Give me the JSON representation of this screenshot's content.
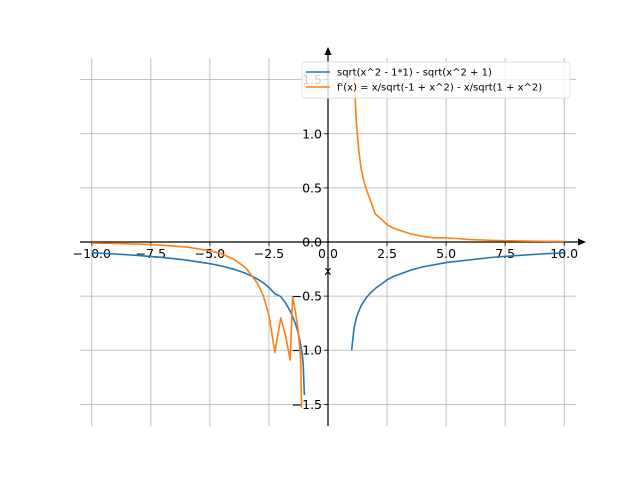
{
  "chart_data": {
    "type": "line",
    "title": "",
    "xlabel": "x",
    "ylabel": "",
    "xlim": [
      -10.5,
      10.5
    ],
    "ylim": [
      -1.7,
      1.7
    ],
    "grid": true,
    "legend_position": "top-right",
    "x_ticks": [
      -10.0,
      -7.5,
      -5.0,
      -2.5,
      0.0,
      2.5,
      5.0,
      7.5,
      10.0
    ],
    "x_tick_labels": [
      "−10.0",
      "−7.5",
      "−5.0",
      "−2.5",
      "0.0",
      "2.5",
      "5.0",
      "7.5",
      "10.0"
    ],
    "y_ticks": [
      -1.5,
      -1.0,
      -0.5,
      0.0,
      0.5,
      1.0,
      1.5
    ],
    "y_tick_labels": [
      "−1.5",
      "−1.0",
      "−0.5",
      "0.0",
      "0.5",
      "1.0",
      "1.5"
    ],
    "series": [
      {
        "name": "sqrt(x^2 - 1*1) - sqrt(x^2 + 1)",
        "color": "#1f77b4",
        "segments": [
          {
            "x": [
              -10.0,
              -9.0,
              -8.0,
              -7.0,
              -6.0,
              -5.0,
              -4.5,
              -4.0,
              -3.5,
              -3.0,
              -2.75,
              -2.5,
              -2.25,
              -2.0,
              -1.8,
              -1.6,
              -1.4,
              -1.3,
              -1.2,
              -1.1,
              -1.05,
              -1.0
            ],
            "y": [
              -0.1,
              -0.111,
              -0.125,
              -0.143,
              -0.167,
              -0.2,
              -0.222,
              -0.251,
              -0.288,
              -0.34,
              -0.375,
              -0.42,
              -0.478,
              -0.504,
              -0.562,
              -0.638,
              -0.742,
              -0.811,
              -0.898,
              -1.024,
              -1.129,
              -1.414
            ]
          },
          {
            "x": [
              1.0,
              1.05,
              1.1,
              1.2,
              1.3,
              1.4,
              1.6,
              1.8,
              2.0,
              2.25,
              2.5,
              2.75,
              3.0,
              3.5,
              4.0,
              4.5,
              5.0,
              6.0,
              7.0,
              8.0,
              9.0,
              10.0
            ],
            "y": [
              -1.0,
              -0.9,
              -0.8,
              -0.7,
              -0.64,
              -0.59,
              -0.52,
              -0.47,
              -0.43,
              -0.39,
              -0.35,
              -0.32,
              -0.3,
              -0.26,
              -0.23,
              -0.21,
              -0.19,
              -0.165,
              -0.141,
              -0.125,
              -0.111,
              -0.1
            ]
          }
        ]
      },
      {
        "name": "f'(x) = x/sqrt(-1 + x^2) - x/sqrt(1 + x^2)",
        "color": "#ff7f0e",
        "segments": [
          {
            "x": [
              -10.0,
              -9.0,
              -8.0,
              -7.0,
              -6.0,
              -5.0,
              -4.5,
              -4.0,
              -3.5,
              -3.0,
              -2.75,
              -2.5,
              -2.25,
              -2.0,
              -1.8,
              -1.6,
              -1.5,
              -1.4,
              -1.3,
              -1.25,
              -1.2,
              -1.15,
              -1.12
            ],
            "y": [
              -0.01,
              -0.0137,
              -0.0196,
              -0.0292,
              -0.0464,
              -0.0801,
              -0.11,
              -0.157,
              -0.235,
              -0.376,
              -0.49,
              -0.676,
              -1.02,
              -0.702,
              -0.861,
              -1.09,
              -0.509,
              -0.618,
              -0.757,
              -0.848,
              -0.967,
              -1.12,
              -1.53
            ]
          },
          {
            "x": [
              1.1,
              1.12,
              1.15,
              1.2,
              1.25,
              1.3,
              1.4,
              1.5,
              1.6,
              1.8,
              2.0,
              2.25,
              2.5,
              2.75,
              3.0,
              3.5,
              4.0,
              4.5,
              5.0,
              6.0,
              7.0,
              8.0,
              9.0,
              10.0
            ],
            "y": [
              1.53,
              1.44,
              1.33,
              1.11,
              0.98,
              0.85,
              0.68,
              0.58,
              0.5,
              0.381,
              0.26,
              0.212,
              0.16,
              0.13,
              0.111,
              0.075,
              0.0529,
              0.0388,
              0.0392,
              0.0232,
              0.0146,
              0.0098,
              0.00686,
              0.005
            ]
          }
        ]
      }
    ]
  }
}
